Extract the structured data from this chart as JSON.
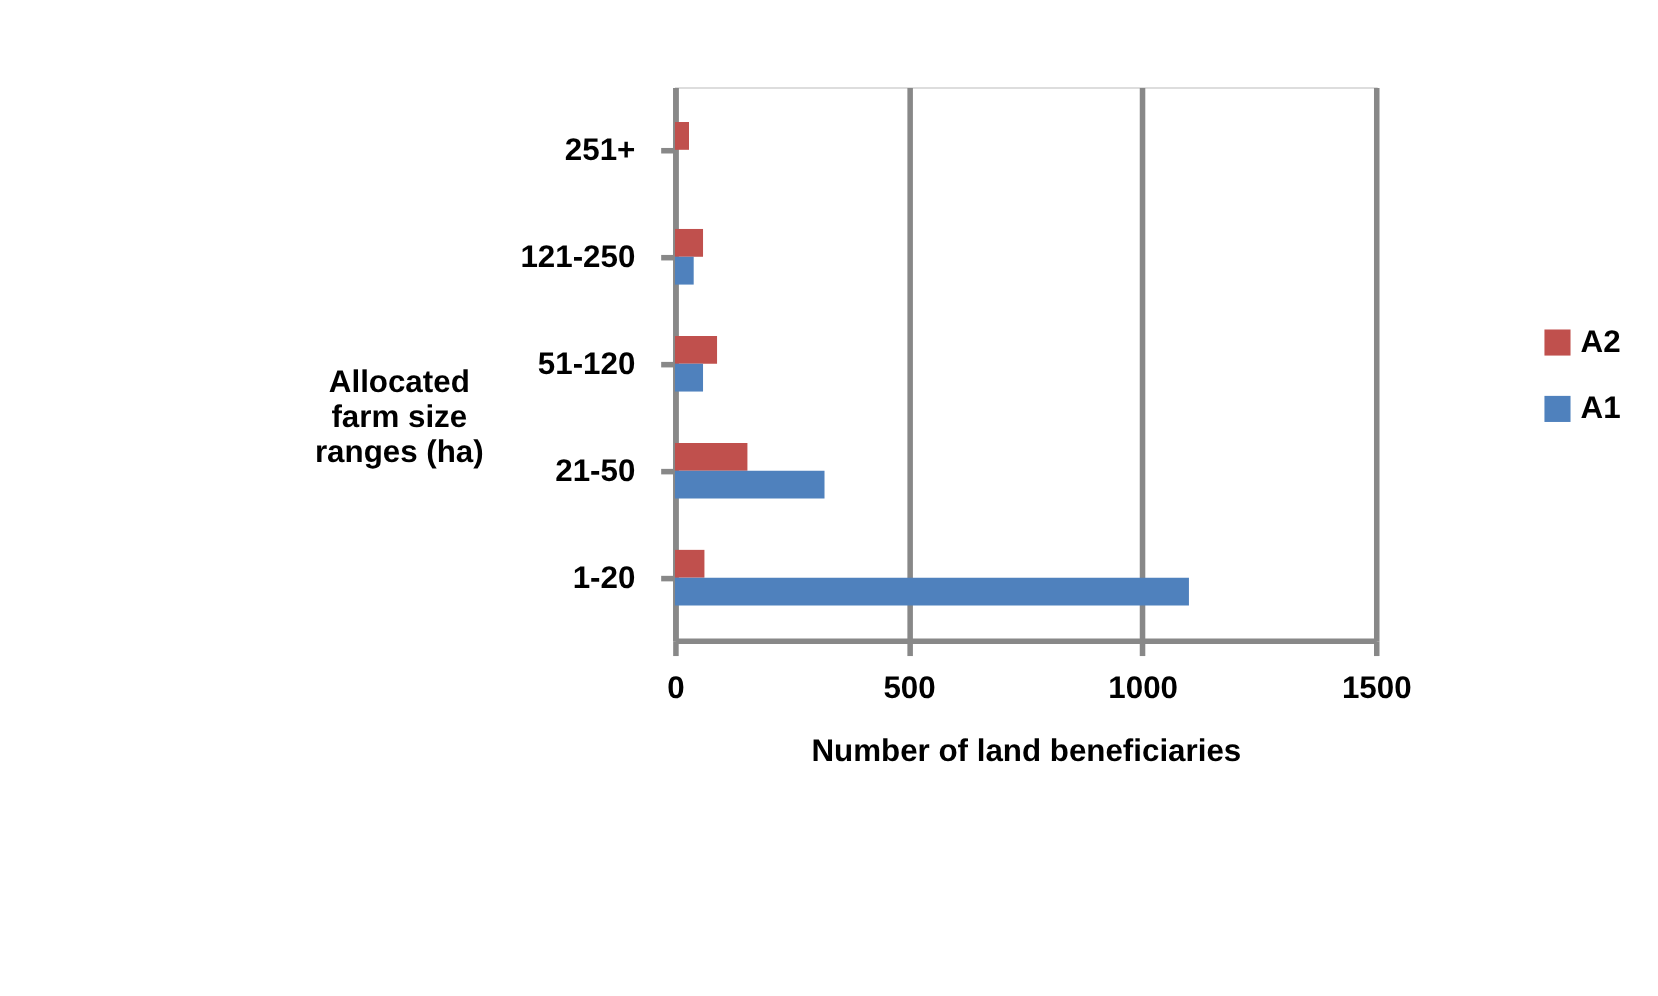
{
  "chart_data": {
    "type": "bar",
    "orientation": "horizontal",
    "xlabel": "Number of land beneficiaries",
    "ylabel": "Allocated farm size ranges (ha)",
    "categories": [
      "251+",
      "121-250",
      "51-120",
      "21-50",
      "1-20"
    ],
    "series": [
      {
        "name": "A2",
        "color": "#c0504d",
        "values": [
          30,
          60,
          90,
          155,
          63
        ]
      },
      {
        "name": "A1",
        "color": "#4f81bd",
        "values": [
          0,
          40,
          60,
          320,
          1100
        ]
      }
    ],
    "xlim": [
      0,
      1500
    ],
    "xticks": [
      0,
      500,
      1000,
      1500
    ],
    "grid": "x",
    "legend": "right"
  }
}
